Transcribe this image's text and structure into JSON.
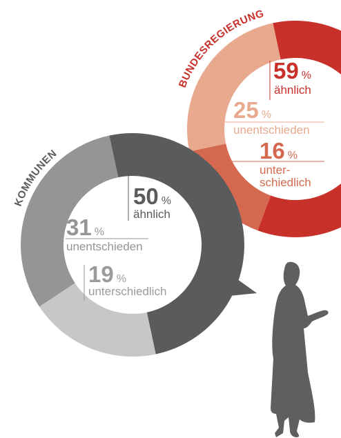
{
  "chart_data": [
    {
      "type": "donut",
      "title": "BUNDESREGIERUNG",
      "unit": "%",
      "categories": [
        "ähnlich",
        "unentschieden",
        "unter-\nschiedlich"
      ],
      "values": [
        59,
        25,
        16
      ],
      "colors": [
        "#c8302a",
        "#e8a98f",
        "#d4694f"
      ]
    },
    {
      "type": "donut",
      "title": "KOMMUNEN",
      "unit": "%",
      "categories": [
        "ähnlich",
        "unentschieden",
        "unterschiedlich"
      ],
      "values": [
        50,
        31,
        19
      ],
      "colors": [
        "#5a5b5d",
        "#949597",
        "#c6c7c9"
      ]
    }
  ]
}
